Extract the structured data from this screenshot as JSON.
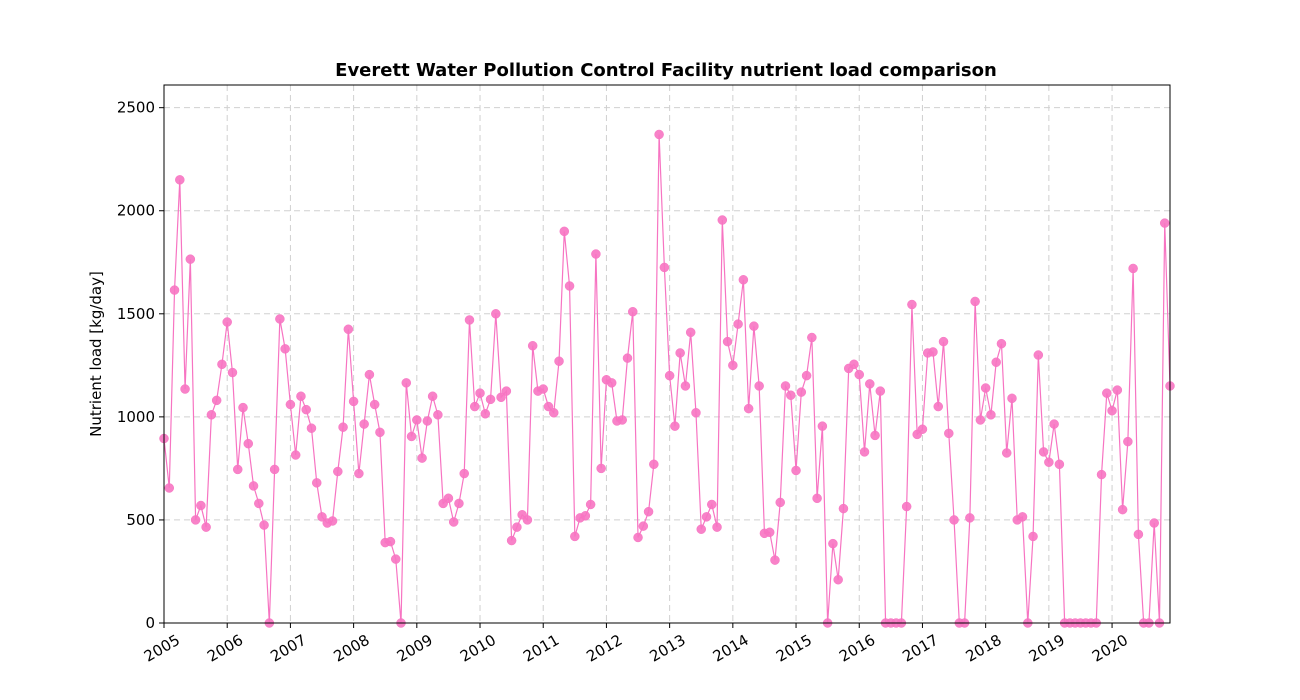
{
  "chart_data": {
    "type": "line",
    "title": "Everett Water Pollution Control Facility nutrient load comparison",
    "xlabel": "",
    "ylabel": "Nutrient load [kg/day]",
    "x_tick_labels": [
      "2005",
      "2006",
      "2007",
      "2008",
      "2009",
      "2010",
      "2011",
      "2012",
      "2013",
      "2014",
      "2015",
      "2016",
      "2017",
      "2018",
      "2019",
      "2020"
    ],
    "y_ticks": [
      0,
      500,
      1000,
      1500,
      2000,
      2500
    ],
    "xlim": [
      "2005-01",
      "2020-12"
    ],
    "ylim": [
      0,
      2610
    ],
    "grid": true,
    "marker": "circle",
    "color": "#f774c2",
    "series": [
      {
        "x": [
          "2005-01",
          "2005-02",
          "2005-03",
          "2005-04",
          "2005-05",
          "2005-06",
          "2005-07",
          "2005-08",
          "2005-09",
          "2005-10",
          "2005-11",
          "2005-12",
          "2006-01",
          "2006-02",
          "2006-03",
          "2006-04",
          "2006-05",
          "2006-06",
          "2006-07",
          "2006-08",
          "2006-09",
          "2006-10",
          "2006-11",
          "2006-12",
          "2007-01",
          "2007-02",
          "2007-03",
          "2007-04",
          "2007-05",
          "2007-06",
          "2007-07",
          "2007-08",
          "2007-09",
          "2007-10",
          "2007-11",
          "2007-12",
          "2008-01",
          "2008-02",
          "2008-03",
          "2008-04",
          "2008-05",
          "2008-06",
          "2008-07",
          "2008-08",
          "2008-09",
          "2008-10",
          "2008-11",
          "2008-12",
          "2009-01",
          "2009-02",
          "2009-03",
          "2009-04",
          "2009-05",
          "2009-06",
          "2009-07",
          "2009-08",
          "2009-09",
          "2009-10",
          "2009-11",
          "2009-12",
          "2010-01",
          "2010-02",
          "2010-03",
          "2010-04",
          "2010-05",
          "2010-06",
          "2010-07",
          "2010-08",
          "2010-09",
          "2010-10",
          "2010-11",
          "2010-12",
          "2011-01",
          "2011-02",
          "2011-03",
          "2011-04",
          "2011-05",
          "2011-06",
          "2011-07",
          "2011-08",
          "2011-09",
          "2011-10",
          "2011-11",
          "2011-12",
          "2012-01",
          "2012-02",
          "2012-03",
          "2012-04",
          "2012-05",
          "2012-06",
          "2012-07",
          "2012-08",
          "2012-09",
          "2012-10",
          "2012-11",
          "2012-12",
          "2013-01",
          "2013-02",
          "2013-03",
          "2013-04",
          "2013-05",
          "2013-06",
          "2013-07",
          "2013-08",
          "2013-09",
          "2013-10",
          "2013-11",
          "2013-12",
          "2014-01",
          "2014-02",
          "2014-03",
          "2014-04",
          "2014-05",
          "2014-06",
          "2014-07",
          "2014-08",
          "2014-09",
          "2014-10",
          "2014-11",
          "2014-12",
          "2015-01",
          "2015-02",
          "2015-03",
          "2015-04",
          "2015-05",
          "2015-06",
          "2015-07",
          "2015-08",
          "2015-09",
          "2015-10",
          "2015-11",
          "2015-12",
          "2016-01",
          "2016-02",
          "2016-03",
          "2016-04",
          "2016-05",
          "2016-06",
          "2016-07",
          "2016-08",
          "2016-09",
          "2016-10",
          "2016-11",
          "2016-12",
          "2017-01",
          "2017-02",
          "2017-03",
          "2017-04",
          "2017-05",
          "2017-06",
          "2017-07",
          "2017-08",
          "2017-09",
          "2017-10",
          "2017-11",
          "2017-12",
          "2018-01",
          "2018-02",
          "2018-03",
          "2018-04",
          "2018-05",
          "2018-06",
          "2018-07",
          "2018-08",
          "2018-09",
          "2018-10",
          "2018-11",
          "2018-12",
          "2019-01",
          "2019-02",
          "2019-03",
          "2019-04",
          "2019-05",
          "2019-06",
          "2019-07",
          "2019-08",
          "2019-09",
          "2019-10",
          "2019-11",
          "2019-12",
          "2020-01",
          "2020-02",
          "2020-03",
          "2020-04",
          "2020-05",
          "2020-06",
          "2020-07",
          "2020-08",
          "2020-09",
          "2020-10",
          "2020-11",
          "2020-12"
        ],
        "values": [
          895,
          655,
          1615,
          2150,
          1135,
          1765,
          500,
          570,
          465,
          1010,
          1080,
          1255,
          1460,
          1215,
          745,
          1045,
          870,
          665,
          580,
          475,
          0,
          745,
          1475,
          1330,
          1060,
          815,
          1100,
          1035,
          945,
          680,
          515,
          485,
          495,
          735,
          950,
          1425,
          1075,
          725,
          965,
          1205,
          1060,
          925,
          390,
          395,
          310,
          0,
          1165,
          905,
          985,
          800,
          980,
          1100,
          1010,
          580,
          605,
          490,
          580,
          725,
          1470,
          1050,
          1115,
          1015,
          1085,
          1500,
          1095,
          1125,
          400,
          465,
          525,
          500,
          1345,
          1125,
          1135,
          1050,
          1020,
          1270,
          1900,
          1635,
          420,
          510,
          520,
          575,
          1790,
          750,
          1180,
          1165,
          980,
          985,
          1285,
          1510,
          415,
          470,
          540,
          770,
          2370,
          1725,
          1200,
          955,
          1310,
          1150,
          1410,
          1020,
          455,
          515,
          575,
          465,
          1955,
          1365,
          1250,
          1450,
          1665,
          1040,
          1440,
          1150,
          435,
          440,
          305,
          585,
          1150,
          1105,
          740,
          1120,
          1200,
          1385,
          605,
          955,
          0,
          385,
          210,
          555,
          1235,
          1255,
          1205,
          830,
          1160,
          910,
          1125,
          0,
          0,
          0,
          0,
          565,
          1545,
          915,
          940,
          1310,
          1315,
          1050,
          1365,
          920,
          500,
          0,
          0,
          510,
          1560,
          985,
          1140,
          1010,
          1265,
          1355,
          825,
          1090,
          500,
          515,
          0,
          420,
          1300,
          830,
          780,
          965,
          770,
          0,
          0,
          0,
          0,
          0,
          0,
          0,
          720,
          1115,
          1030,
          1130,
          550,
          880,
          1720,
          430,
          0,
          0,
          485,
          0,
          1940,
          1150
        ]
      }
    ]
  }
}
